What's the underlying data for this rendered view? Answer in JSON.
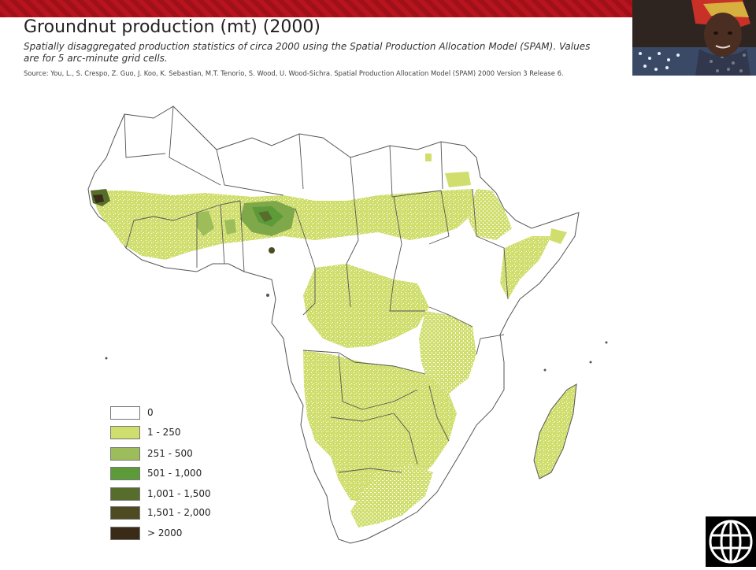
{
  "header": {
    "title": "Groundnut production (mt) (2000)",
    "subtitle": "Spatially disaggregated production statistics of circa 2000 using the Spatial Production Allocation Model (SPAM). Values are for 5 arc-minute grid cells.",
    "source": "Source: You, L., S. Crespo, Z. Guo, J. Koo, K. Sebastian, M.T. Tenorio, S. Wood, U. Wood-Sichra. Spatial Production Allocation Model (SPAM) 2000 Version 3 Release 6."
  },
  "colors": {
    "band": "#a8121b",
    "land_base": "#ffffff",
    "border": "#555555",
    "c0": "#ffffff",
    "c1": "#d0de6e",
    "c2": "#9cbd5a",
    "c3": "#5d9a3a",
    "c4": "#566d2c",
    "c5": "#4e4a22",
    "c6": "#3a2a18"
  },
  "legend": [
    {
      "label": "0",
      "color": "#ffffff"
    },
    {
      "label": "1 - 250",
      "color": "#d0de6e"
    },
    {
      "label": "251 - 500",
      "color": "#9cbd5a"
    },
    {
      "label": "501 - 1,000",
      "color": "#5d9a3a"
    },
    {
      "label": "1,001 - 1,500",
      "color": "#566d2c"
    },
    {
      "label": "1,501 - 2,000",
      "color": "#4e4a22"
    },
    {
      "label": "> 2000",
      "color": "#3a2a18"
    }
  ]
}
